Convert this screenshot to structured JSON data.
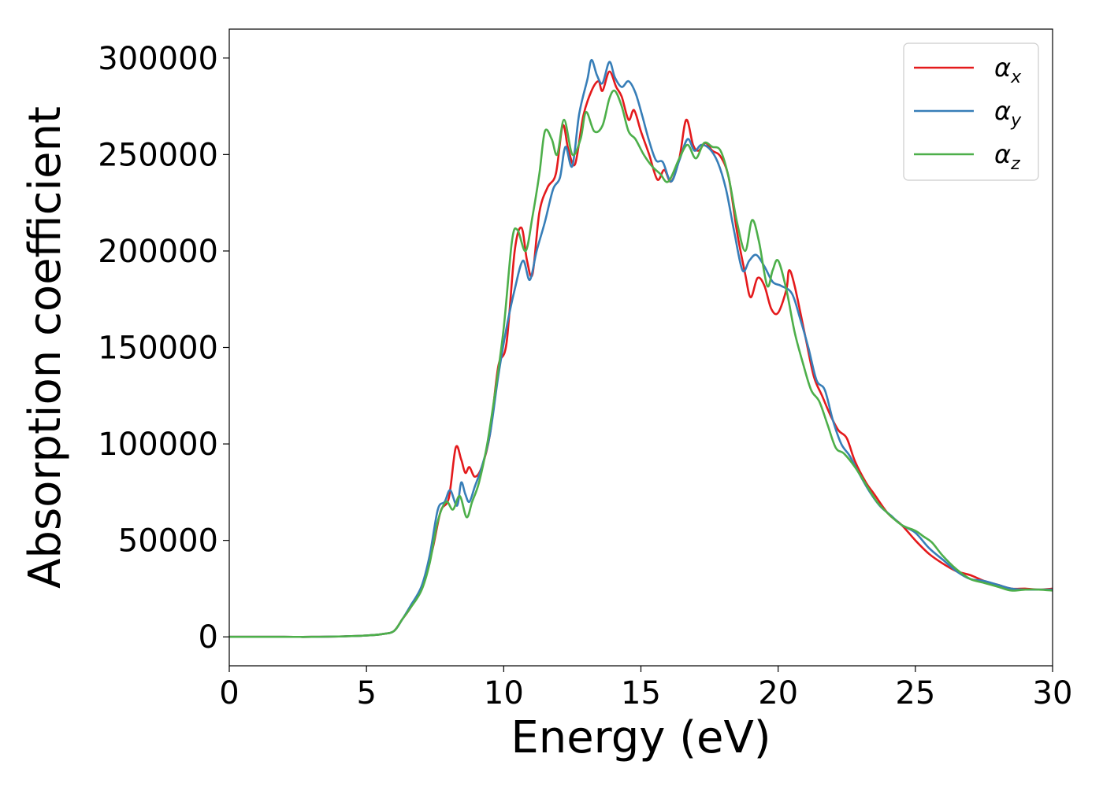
{
  "chart_data": {
    "type": "line",
    "xlabel": "Energy (eV)",
    "ylabel": "Absorption coefficient",
    "xlim": [
      0,
      30
    ],
    "ylim": [
      -15000,
      315000
    ],
    "xticks": [
      0,
      5,
      10,
      15,
      20,
      25,
      30
    ],
    "yticks": [
      0,
      50000,
      100000,
      150000,
      200000,
      250000,
      300000
    ],
    "xtick_labels": [
      "0",
      "5",
      "10",
      "15",
      "20",
      "25",
      "30"
    ],
    "ytick_labels": [
      "0",
      "50000",
      "100000",
      "150000",
      "200000",
      "250000",
      "300000"
    ],
    "grid": false,
    "legend_position": "top-right",
    "series": [
      {
        "name": "αx",
        "symbol": "α",
        "sub": "x",
        "color": "#e41a1c",
        "points": [
          [
            0,
            0
          ],
          [
            1,
            0
          ],
          [
            2,
            0
          ],
          [
            3,
            0
          ],
          [
            4,
            200
          ],
          [
            5,
            700
          ],
          [
            5.6,
            1500
          ],
          [
            6,
            3000
          ],
          [
            6.3,
            9000
          ],
          [
            6.6,
            15000
          ],
          [
            7,
            25000
          ],
          [
            7.4,
            45000
          ],
          [
            7.7,
            65000
          ],
          [
            8,
            72000
          ],
          [
            8.25,
            98000
          ],
          [
            8.45,
            92000
          ],
          [
            8.6,
            85000
          ],
          [
            8.75,
            88000
          ],
          [
            8.95,
            83000
          ],
          [
            9.2,
            88000
          ],
          [
            9.5,
            105000
          ],
          [
            9.8,
            140000
          ],
          [
            10.1,
            152000
          ],
          [
            10.4,
            200000
          ],
          [
            10.65,
            212000
          ],
          [
            10.85,
            195000
          ],
          [
            11.05,
            188000
          ],
          [
            11.3,
            220000
          ],
          [
            11.6,
            233000
          ],
          [
            11.9,
            240000
          ],
          [
            12.15,
            265000
          ],
          [
            12.35,
            253000
          ],
          [
            12.6,
            245000
          ],
          [
            12.9,
            270000
          ],
          [
            13.2,
            283000
          ],
          [
            13.45,
            288000
          ],
          [
            13.6,
            283000
          ],
          [
            13.85,
            293000
          ],
          [
            14.1,
            285000
          ],
          [
            14.3,
            280000
          ],
          [
            14.55,
            268000
          ],
          [
            14.75,
            273000
          ],
          [
            15,
            262000
          ],
          [
            15.3,
            250000
          ],
          [
            15.6,
            237000
          ],
          [
            15.85,
            242000
          ],
          [
            16.1,
            236000
          ],
          [
            16.4,
            248000
          ],
          [
            16.65,
            268000
          ],
          [
            16.9,
            255000
          ],
          [
            17.1,
            252000
          ],
          [
            17.35,
            256000
          ],
          [
            17.6,
            252000
          ],
          [
            17.9,
            249000
          ],
          [
            18.2,
            238000
          ],
          [
            18.5,
            210000
          ],
          [
            18.8,
            188000
          ],
          [
            19,
            176000
          ],
          [
            19.25,
            186000
          ],
          [
            19.5,
            182000
          ],
          [
            19.75,
            170000
          ],
          [
            20,
            168000
          ],
          [
            20.3,
            180000
          ],
          [
            20.4,
            190000
          ],
          [
            20.6,
            182000
          ],
          [
            21,
            155000
          ],
          [
            21.3,
            135000
          ],
          [
            21.6,
            125000
          ],
          [
            21.9,
            115000
          ],
          [
            22.2,
            107000
          ],
          [
            22.5,
            103000
          ],
          [
            22.8,
            91000
          ],
          [
            23.2,
            80000
          ],
          [
            23.5,
            74000
          ],
          [
            24,
            64000
          ],
          [
            24.5,
            58000
          ],
          [
            25,
            50000
          ],
          [
            25.5,
            43000
          ],
          [
            26,
            38000
          ],
          [
            26.5,
            34000
          ],
          [
            27,
            32000
          ],
          [
            27.5,
            29000
          ],
          [
            28,
            27000
          ],
          [
            28.5,
            25000
          ],
          [
            29,
            25000
          ],
          [
            29.5,
            24500
          ],
          [
            30,
            25000
          ]
        ]
      },
      {
        "name": "αy",
        "symbol": "α",
        "sub": "y",
        "color": "#377eb8",
        "points": [
          [
            0,
            0
          ],
          [
            1,
            0
          ],
          [
            2,
            0
          ],
          [
            3,
            0
          ],
          [
            4,
            200
          ],
          [
            5,
            700
          ],
          [
            5.6,
            1500
          ],
          [
            6,
            3000
          ],
          [
            6.3,
            9000
          ],
          [
            6.6,
            16000
          ],
          [
            7,
            26000
          ],
          [
            7.3,
            42000
          ],
          [
            7.6,
            66000
          ],
          [
            7.85,
            70000
          ],
          [
            8.05,
            76000
          ],
          [
            8.3,
            68000
          ],
          [
            8.45,
            80000
          ],
          [
            8.6,
            74000
          ],
          [
            8.75,
            70000
          ],
          [
            8.95,
            78000
          ],
          [
            9.2,
            88000
          ],
          [
            9.5,
            105000
          ],
          [
            9.8,
            135000
          ],
          [
            10.1,
            160000
          ],
          [
            10.4,
            180000
          ],
          [
            10.7,
            195000
          ],
          [
            10.95,
            185000
          ],
          [
            11.2,
            200000
          ],
          [
            11.5,
            215000
          ],
          [
            11.8,
            232000
          ],
          [
            12.05,
            238000
          ],
          [
            12.25,
            254000
          ],
          [
            12.5,
            244000
          ],
          [
            12.75,
            271000
          ],
          [
            13.05,
            289000
          ],
          [
            13.2,
            299000
          ],
          [
            13.4,
            291000
          ],
          [
            13.6,
            287000
          ],
          [
            13.85,
            298000
          ],
          [
            14.05,
            290000
          ],
          [
            14.3,
            285000
          ],
          [
            14.55,
            288000
          ],
          [
            14.8,
            282000
          ],
          [
            15.05,
            270000
          ],
          [
            15.3,
            257000
          ],
          [
            15.55,
            247000
          ],
          [
            15.8,
            246000
          ],
          [
            16.1,
            236000
          ],
          [
            16.4,
            247000
          ],
          [
            16.7,
            258000
          ],
          [
            16.95,
            252000
          ],
          [
            17.2,
            255000
          ],
          [
            17.5,
            253000
          ],
          [
            17.8,
            246000
          ],
          [
            18.1,
            232000
          ],
          [
            18.4,
            210000
          ],
          [
            18.7,
            190000
          ],
          [
            18.95,
            195000
          ],
          [
            19.2,
            198000
          ],
          [
            19.5,
            192000
          ],
          [
            19.8,
            184000
          ],
          [
            20.1,
            182000
          ],
          [
            20.5,
            178000
          ],
          [
            20.8,
            165000
          ],
          [
            21.1,
            150000
          ],
          [
            21.4,
            133000
          ],
          [
            21.7,
            128000
          ],
          [
            22.0,
            112000
          ],
          [
            22.3,
            100000
          ],
          [
            22.6,
            94000
          ],
          [
            22.9,
            86000
          ],
          [
            23.3,
            76000
          ],
          [
            23.7,
            68000
          ],
          [
            24.1,
            63000
          ],
          [
            24.5,
            58000
          ],
          [
            25,
            54000
          ],
          [
            25.5,
            46000
          ],
          [
            26,
            40000
          ],
          [
            26.5,
            34000
          ],
          [
            27,
            30000
          ],
          [
            27.5,
            29000
          ],
          [
            28,
            27000
          ],
          [
            28.5,
            25000
          ],
          [
            29,
            24500
          ],
          [
            29.5,
            24500
          ],
          [
            30,
            24500
          ]
        ]
      },
      {
        "name": "αz",
        "symbol": "α",
        "sub": "z",
        "color": "#4daf4a",
        "points": [
          [
            0,
            0
          ],
          [
            1,
            0
          ],
          [
            2,
            0
          ],
          [
            3,
            0
          ],
          [
            4,
            200
          ],
          [
            5,
            700
          ],
          [
            5.6,
            1500
          ],
          [
            6,
            3000
          ],
          [
            6.3,
            9000
          ],
          [
            6.6,
            15000
          ],
          [
            7,
            24000
          ],
          [
            7.3,
            38000
          ],
          [
            7.6,
            60000
          ],
          [
            7.9,
            70000
          ],
          [
            8.15,
            66000
          ],
          [
            8.4,
            73000
          ],
          [
            8.65,
            62000
          ],
          [
            8.85,
            70000
          ],
          [
            9.1,
            80000
          ],
          [
            9.4,
            100000
          ],
          [
            9.7,
            128000
          ],
          [
            10.0,
            160000
          ],
          [
            10.3,
            205000
          ],
          [
            10.5,
            211000
          ],
          [
            10.8,
            200000
          ],
          [
            11.05,
            218000
          ],
          [
            11.3,
            240000
          ],
          [
            11.5,
            262000
          ],
          [
            11.75,
            258000
          ],
          [
            11.95,
            250000
          ],
          [
            12.2,
            268000
          ],
          [
            12.5,
            250000
          ],
          [
            12.8,
            258000
          ],
          [
            13.0,
            272000
          ],
          [
            13.3,
            262000
          ],
          [
            13.6,
            265000
          ],
          [
            13.85,
            279000
          ],
          [
            14.05,
            283000
          ],
          [
            14.3,
            275000
          ],
          [
            14.55,
            262000
          ],
          [
            14.8,
            258000
          ],
          [
            15.1,
            250000
          ],
          [
            15.4,
            244000
          ],
          [
            15.7,
            240000
          ],
          [
            16.0,
            236000
          ],
          [
            16.4,
            248000
          ],
          [
            16.7,
            255000
          ],
          [
            17.0,
            248000
          ],
          [
            17.3,
            256000
          ],
          [
            17.6,
            254000
          ],
          [
            17.9,
            252000
          ],
          [
            18.2,
            238000
          ],
          [
            18.5,
            215000
          ],
          [
            18.8,
            200000
          ],
          [
            19.05,
            216000
          ],
          [
            19.3,
            205000
          ],
          [
            19.6,
            182000
          ],
          [
            19.8,
            190000
          ],
          [
            20.0,
            195000
          ],
          [
            20.3,
            180000
          ],
          [
            20.6,
            158000
          ],
          [
            20.9,
            142000
          ],
          [
            21.2,
            128000
          ],
          [
            21.5,
            122000
          ],
          [
            21.8,
            110000
          ],
          [
            22.1,
            98000
          ],
          [
            22.4,
            95000
          ],
          [
            22.8,
            88000
          ],
          [
            23.2,
            79000
          ],
          [
            23.6,
            70000
          ],
          [
            24,
            64000
          ],
          [
            24.5,
            58000
          ],
          [
            25,
            55000
          ],
          [
            25.3,
            52000
          ],
          [
            25.6,
            49000
          ],
          [
            26,
            42000
          ],
          [
            26.5,
            35000
          ],
          [
            27,
            30000
          ],
          [
            27.5,
            28000
          ],
          [
            28,
            26000
          ],
          [
            28.5,
            24000
          ],
          [
            29,
            24500
          ],
          [
            29.5,
            24500
          ],
          [
            30,
            24000
          ]
        ]
      }
    ]
  }
}
